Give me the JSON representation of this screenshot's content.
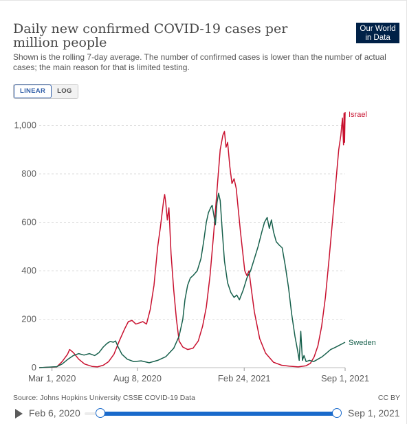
{
  "header": {
    "title": "Daily new confirmed COVID-19 cases per million people",
    "subtitle": "Shown is the rolling 7-day average. The number of confirmed cases is lower than the number of actual cases; the main reason for that is limited testing.",
    "logo_line1": "Our World",
    "logo_line2": "in Data"
  },
  "scale_toggle": {
    "linear_label": "LINEAR",
    "log_label": "LOG",
    "selected": "LINEAR"
  },
  "footer": {
    "source": "Source: Johns Hopkins University CSSE COVID-19 Data",
    "license": "CC BY"
  },
  "timeline": {
    "start_label": "Feb 6, 2020",
    "end_label": "Sep 1, 2021"
  },
  "colors": {
    "Israel": "#c8102e",
    "Sweden": "#17604c",
    "grid": "#dddddd",
    "axis_text": "#5b5b5b",
    "accent": "#1a6acb"
  },
  "chart_data": {
    "type": "line",
    "title": "Daily new confirmed COVID-19 cases per million people",
    "x_axis": {
      "type": "date",
      "range": [
        "2020-02-06",
        "2021-09-01"
      ],
      "ticks": [
        "2020-03-01",
        "2020-08-08",
        "2021-02-24",
        "2021-09-01"
      ],
      "tick_labels": [
        "Mar 1, 2020",
        "Aug 8, 2020",
        "Feb 24, 2021",
        "Sep 1, 2021"
      ]
    },
    "y_axis": {
      "range": [
        0,
        1100
      ],
      "ticks": [
        0,
        200,
        400,
        600,
        800,
        1000
      ],
      "tick_labels": [
        "0",
        "200",
        "400",
        "600",
        "800",
        "1,000"
      ]
    },
    "grid": "horizontal dashed",
    "legend": "line-end labels",
    "series": [
      {
        "name": "Israel",
        "points": [
          [
            "2020-02-06",
            0
          ],
          [
            "2020-03-10",
            3
          ],
          [
            "2020-03-20",
            25
          ],
          [
            "2020-03-30",
            55
          ],
          [
            "2020-04-03",
            75
          ],
          [
            "2020-04-10",
            62
          ],
          [
            "2020-04-20",
            35
          ],
          [
            "2020-05-01",
            15
          ],
          [
            "2020-05-15",
            5
          ],
          [
            "2020-05-25",
            3
          ],
          [
            "2020-06-05",
            10
          ],
          [
            "2020-06-15",
            25
          ],
          [
            "2020-06-25",
            55
          ],
          [
            "2020-07-05",
            110
          ],
          [
            "2020-07-15",
            160
          ],
          [
            "2020-07-22",
            190
          ],
          [
            "2020-07-29",
            195
          ],
          [
            "2020-08-05",
            180
          ],
          [
            "2020-08-12",
            185
          ],
          [
            "2020-08-18",
            190
          ],
          [
            "2020-08-25",
            180
          ],
          [
            "2020-09-01",
            240
          ],
          [
            "2020-09-08",
            340
          ],
          [
            "2020-09-15",
            500
          ],
          [
            "2020-09-20",
            580
          ],
          [
            "2020-09-26",
            690
          ],
          [
            "2020-09-28",
            715
          ],
          [
            "2020-09-30",
            680
          ],
          [
            "2020-10-03",
            610
          ],
          [
            "2020-10-06",
            660
          ],
          [
            "2020-10-10",
            470
          ],
          [
            "2020-10-15",
            320
          ],
          [
            "2020-10-20",
            200
          ],
          [
            "2020-10-25",
            110
          ],
          [
            "2020-11-01",
            85
          ],
          [
            "2020-11-10",
            75
          ],
          [
            "2020-11-20",
            80
          ],
          [
            "2020-11-30",
            110
          ],
          [
            "2020-12-08",
            170
          ],
          [
            "2020-12-15",
            250
          ],
          [
            "2020-12-22",
            380
          ],
          [
            "2020-12-29",
            560
          ],
          [
            "2021-01-05",
            760
          ],
          [
            "2021-01-10",
            900
          ],
          [
            "2021-01-15",
            960
          ],
          [
            "2021-01-18",
            975
          ],
          [
            "2021-01-21",
            910
          ],
          [
            "2021-01-24",
            930
          ],
          [
            "2021-01-28",
            830
          ],
          [
            "2021-02-01",
            760
          ],
          [
            "2021-02-05",
            780
          ],
          [
            "2021-02-09",
            740
          ],
          [
            "2021-02-13",
            650
          ],
          [
            "2021-02-17",
            560
          ],
          [
            "2021-02-21",
            480
          ],
          [
            "2021-02-25",
            400
          ],
          [
            "2021-03-01",
            380
          ],
          [
            "2021-03-05",
            400
          ],
          [
            "2021-03-09",
            330
          ],
          [
            "2021-03-15",
            230
          ],
          [
            "2021-03-25",
            120
          ],
          [
            "2021-04-05",
            60
          ],
          [
            "2021-04-20",
            22
          ],
          [
            "2021-05-05",
            10
          ],
          [
            "2021-05-20",
            6
          ],
          [
            "2021-06-05",
            3
          ],
          [
            "2021-06-20",
            8
          ],
          [
            "2021-06-28",
            18
          ],
          [
            "2021-07-05",
            45
          ],
          [
            "2021-07-12",
            90
          ],
          [
            "2021-07-19",
            170
          ],
          [
            "2021-07-26",
            290
          ],
          [
            "2021-08-02",
            450
          ],
          [
            "2021-08-09",
            620
          ],
          [
            "2021-08-16",
            800
          ],
          [
            "2021-08-20",
            900
          ],
          [
            "2021-08-24",
            960
          ],
          [
            "2021-08-27",
            1030
          ],
          [
            "2021-08-29",
            920
          ],
          [
            "2021-08-30",
            1050
          ],
          [
            "2021-08-31",
            930
          ],
          [
            "2021-09-01",
            1055
          ]
        ]
      },
      {
        "name": "Sweden",
        "points": [
          [
            "2020-02-06",
            0
          ],
          [
            "2020-03-10",
            4
          ],
          [
            "2020-03-20",
            15
          ],
          [
            "2020-03-31",
            35
          ],
          [
            "2020-04-10",
            50
          ],
          [
            "2020-04-20",
            58
          ],
          [
            "2020-04-30",
            52
          ],
          [
            "2020-05-10",
            58
          ],
          [
            "2020-05-20",
            50
          ],
          [
            "2020-05-28",
            62
          ],
          [
            "2020-06-05",
            85
          ],
          [
            "2020-06-12",
            100
          ],
          [
            "2020-06-18",
            108
          ],
          [
            "2020-06-24",
            105
          ],
          [
            "2020-06-28",
            110
          ],
          [
            "2020-07-03",
            85
          ],
          [
            "2020-07-10",
            55
          ],
          [
            "2020-07-20",
            35
          ],
          [
            "2020-08-01",
            25
          ],
          [
            "2020-08-15",
            28
          ],
          [
            "2020-08-30",
            20
          ],
          [
            "2020-09-15",
            30
          ],
          [
            "2020-09-30",
            45
          ],
          [
            "2020-10-15",
            80
          ],
          [
            "2020-10-25",
            130
          ],
          [
            "2020-11-01",
            200
          ],
          [
            "2020-11-05",
            280
          ],
          [
            "2020-11-10",
            340
          ],
          [
            "2020-11-15",
            370
          ],
          [
            "2020-11-20",
            380
          ],
          [
            "2020-11-28",
            400
          ],
          [
            "2020-12-05",
            450
          ],
          [
            "2020-12-10",
            520
          ],
          [
            "2020-12-15",
            600
          ],
          [
            "2020-12-19",
            640
          ],
          [
            "2020-12-23",
            660
          ],
          [
            "2020-12-26",
            670
          ],
          [
            "2020-12-29",
            630
          ],
          [
            "2021-01-01",
            590
          ],
          [
            "2021-01-04",
            680
          ],
          [
            "2021-01-07",
            720
          ],
          [
            "2021-01-10",
            690
          ],
          [
            "2021-01-14",
            560
          ],
          [
            "2021-01-18",
            440
          ],
          [
            "2021-01-24",
            350
          ],
          [
            "2021-01-30",
            310
          ],
          [
            "2021-02-05",
            290
          ],
          [
            "2021-02-10",
            300
          ],
          [
            "2021-02-15",
            280
          ],
          [
            "2021-02-22",
            320
          ],
          [
            "2021-03-01",
            370
          ],
          [
            "2021-03-08",
            400
          ],
          [
            "2021-03-15",
            450
          ],
          [
            "2021-03-22",
            500
          ],
          [
            "2021-03-29",
            560
          ],
          [
            "2021-04-03",
            600
          ],
          [
            "2021-04-08",
            620
          ],
          [
            "2021-04-12",
            575
          ],
          [
            "2021-04-16",
            610
          ],
          [
            "2021-04-20",
            560
          ],
          [
            "2021-04-25",
            520
          ],
          [
            "2021-05-01",
            505
          ],
          [
            "2021-05-06",
            495
          ],
          [
            "2021-05-12",
            420
          ],
          [
            "2021-05-18",
            330
          ],
          [
            "2021-05-24",
            220
          ],
          [
            "2021-05-30",
            130
          ],
          [
            "2021-06-04",
            70
          ],
          [
            "2021-06-07",
            30
          ],
          [
            "2021-06-10",
            150
          ],
          [
            "2021-06-13",
            30
          ],
          [
            "2021-06-16",
            50
          ],
          [
            "2021-06-20",
            25
          ],
          [
            "2021-06-26",
            30
          ],
          [
            "2021-07-04",
            25
          ],
          [
            "2021-07-12",
            35
          ],
          [
            "2021-07-20",
            45
          ],
          [
            "2021-07-28",
            60
          ],
          [
            "2021-08-05",
            75
          ],
          [
            "2021-08-12",
            82
          ],
          [
            "2021-08-19",
            90
          ],
          [
            "2021-08-26",
            98
          ],
          [
            "2021-09-01",
            105
          ]
        ]
      }
    ]
  }
}
